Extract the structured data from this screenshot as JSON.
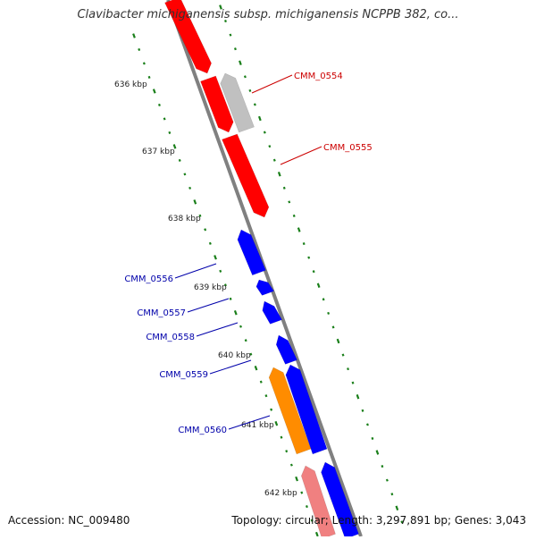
{
  "title": "Clavibacter michiganensis subsp. michiganensis NCPPB 382, co...",
  "footer": {
    "accession": "Accession: NC_009480",
    "summary": "Topology: circular; Length: 3,297,891 bp; Genes: 3,043"
  },
  "colors": {
    "red": "#ff0000",
    "grey": "#c0c0c0",
    "blue": "#0000ff",
    "orange": "#ff8c00",
    "pink": "#f08080",
    "backbone": "#808080",
    "ticks": "#1a7f1a",
    "label_red": "#cc0000",
    "label_blue": "#0000aa"
  },
  "ticks": [
    {
      "label": "636 kbp"
    },
    {
      "label": "637 kbp"
    },
    {
      "label": "638 kbp"
    },
    {
      "label": "639 kbp"
    },
    {
      "label": "640 kbp"
    },
    {
      "label": "641 kbp"
    },
    {
      "label": "642 kbp"
    }
  ],
  "gene_labels": [
    {
      "text": "CMM_0554",
      "color": "red"
    },
    {
      "text": "CMM_0555",
      "color": "red"
    },
    {
      "text": "CMM_0556",
      "color": "blue"
    },
    {
      "text": "CMM_0557",
      "color": "blue"
    },
    {
      "text": "CMM_0558",
      "color": "blue"
    },
    {
      "text": "CMM_0559",
      "color": "blue"
    },
    {
      "text": "CMM_0560",
      "color": "blue"
    }
  ]
}
